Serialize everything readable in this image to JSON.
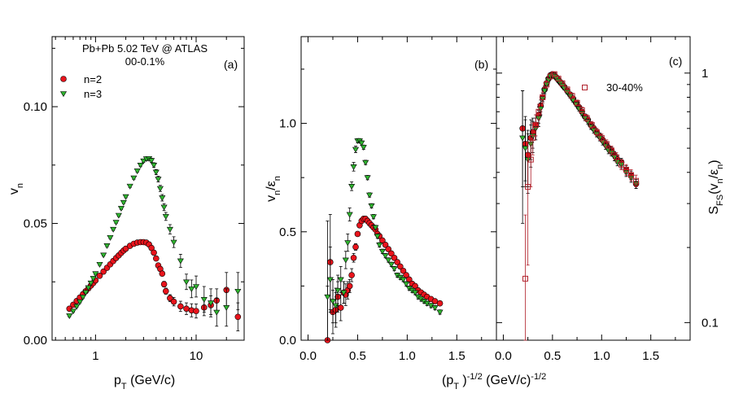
{
  "chart_data": [
    {
      "type": "scatter",
      "panel": "(a)",
      "title": "Pb+Pb 5.02 TeV @ ATLAS",
      "subtitle": "00-0.1%",
      "xlabel": "p",
      "xlabel_sub": "T",
      "xlabel_unit": " (GeV/c)",
      "ylabel": "v",
      "ylabel_sub": "n",
      "xscale": "log",
      "xlim": [
        0.37,
        30
      ],
      "ylim": [
        0,
        0.13
      ],
      "xticks": [
        1,
        10
      ],
      "xtick_labels": [
        "1",
        "10"
      ],
      "yticks": [
        0,
        0.05,
        0.1
      ],
      "ytick_labels": [
        "0.00",
        "0.05",
        "0.10"
      ],
      "legend_position": "top-left",
      "series": [
        {
          "name": "n=2",
          "color": "#e8141c",
          "marker": "circle",
          "x": [
            0.55,
            0.6,
            0.65,
            0.7,
            0.75,
            0.8,
            0.85,
            0.9,
            0.95,
            1.0,
            1.1,
            1.2,
            1.3,
            1.4,
            1.5,
            1.6,
            1.7,
            1.8,
            1.9,
            2.0,
            2.2,
            2.4,
            2.6,
            2.8,
            3.0,
            3.2,
            3.4,
            3.6,
            3.8,
            4.0,
            4.2,
            4.4,
            4.6,
            4.8,
            5.0,
            5.5,
            6.0,
            7.0,
            8.0,
            9.0,
            10.0,
            12.0,
            14.0,
            16.0,
            20.0,
            26.0
          ],
          "y": [
            0.0135,
            0.0152,
            0.0168,
            0.0183,
            0.0197,
            0.021,
            0.0222,
            0.0234,
            0.0245,
            0.0256,
            0.0276,
            0.0294,
            0.031,
            0.0325,
            0.0339,
            0.0352,
            0.0363,
            0.0374,
            0.0384,
            0.0392,
            0.0404,
            0.0413,
            0.0418,
            0.042,
            0.042,
            0.0418,
            0.041,
            0.0395,
            0.0375,
            0.035,
            0.032,
            0.0305,
            0.0285,
            0.024,
            0.021,
            0.018,
            0.0165,
            0.0145,
            0.0135,
            0.0128,
            0.0125,
            0.014,
            0.015,
            0.017,
            0.0215,
            0.01
          ],
          "yerr": [
            0.0005,
            0.0005,
            0.0005,
            0.0005,
            0.0005,
            0.0005,
            0.0005,
            0.0005,
            0.0005,
            0.0005,
            0.0005,
            0.0005,
            0.0005,
            0.0005,
            0.0005,
            0.0005,
            0.0005,
            0.0005,
            0.0005,
            0.0005,
            0.0005,
            0.0005,
            0.0005,
            0.0005,
            0.0005,
            0.0005,
            0.0006,
            0.0006,
            0.0007,
            0.0008,
            0.0009,
            0.001,
            0.001,
            0.0012,
            0.0013,
            0.0015,
            0.0018,
            0.0022,
            0.0025,
            0.0028,
            0.003,
            0.0035,
            0.004,
            0.005,
            0.0075,
            0.006
          ]
        },
        {
          "name": "n=3",
          "color": "#2fb52f",
          "marker": "triangle-down",
          "x": [
            0.55,
            0.6,
            0.65,
            0.7,
            0.75,
            0.8,
            0.85,
            0.9,
            0.95,
            1.0,
            1.1,
            1.2,
            1.3,
            1.4,
            1.5,
            1.6,
            1.7,
            1.8,
            1.9,
            2.0,
            2.2,
            2.4,
            2.6,
            2.8,
            3.0,
            3.2,
            3.4,
            3.6,
            3.8,
            4.0,
            4.2,
            4.4,
            4.6,
            4.8,
            5.0,
            5.5,
            6.0,
            7.0,
            8.0,
            9.0,
            10.0,
            12.0,
            14.0,
            16.0,
            20.0,
            26.0
          ],
          "y": [
            0.0105,
            0.0125,
            0.0145,
            0.0165,
            0.0185,
            0.0205,
            0.0225,
            0.0245,
            0.0265,
            0.0285,
            0.0325,
            0.0365,
            0.0405,
            0.044,
            0.0475,
            0.0505,
            0.0535,
            0.0565,
            0.059,
            0.0615,
            0.066,
            0.0695,
            0.0725,
            0.075,
            0.0768,
            0.0777,
            0.0778,
            0.077,
            0.075,
            0.072,
            0.069,
            0.065,
            0.061,
            0.057,
            0.053,
            0.0475,
            0.042,
            0.034,
            0.025,
            0.022,
            0.023,
            0.0175,
            0.016,
            0.012,
            0.014,
            0.021
          ],
          "yerr": [
            0.0005,
            0.0005,
            0.0005,
            0.0005,
            0.0005,
            0.0005,
            0.0005,
            0.0005,
            0.0005,
            0.0005,
            0.0005,
            0.0005,
            0.0005,
            0.0005,
            0.0005,
            0.0005,
            0.0005,
            0.0005,
            0.0005,
            0.0005,
            0.0006,
            0.0006,
            0.0006,
            0.0007,
            0.0007,
            0.0008,
            0.0008,
            0.0009,
            0.001,
            0.0011,
            0.0012,
            0.0013,
            0.0014,
            0.0015,
            0.0017,
            0.002,
            0.0023,
            0.0028,
            0.0033,
            0.0038,
            0.0045,
            0.0055,
            0.006,
            0.006,
            0.008,
            0.008
          ]
        }
      ]
    },
    {
      "type": "scatter",
      "panel": "(b)",
      "xlabel": "(p",
      "xlabel_sub": "T",
      "xlabel_mid": " )",
      "xlabel_sup": "-1/2",
      "xlabel_unit": " (GeV/c)",
      "xlabel_sup2": "-1/2",
      "ylabel": "v",
      "ylabel_sub": "n",
      "ylabel_mid": "/ε",
      "ylabel_sub2": "n",
      "xlim": [
        -0.07,
        1.9
      ],
      "ylim": [
        0,
        1.4
      ],
      "xticks": [
        0,
        0.5,
        1.0,
        1.5
      ],
      "xtick_labels": [
        "0.0",
        "0.5",
        "1.0",
        "1.5"
      ],
      "yticks": [
        0,
        0.5,
        1.0
      ],
      "ytick_labels": [
        "0.0",
        "0.5",
        "1.0"
      ],
      "series": [
        {
          "name": "n=2",
          "color": "#e8141c",
          "marker": "circle",
          "x": [
            0.196,
            0.224,
            0.25,
            0.28,
            0.3,
            0.33,
            0.36,
            0.38,
            0.4,
            0.42,
            0.44,
            0.46,
            0.48,
            0.5,
            0.52,
            0.54,
            0.56,
            0.58,
            0.6,
            0.62,
            0.64,
            0.66,
            0.68,
            0.7,
            0.72,
            0.75,
            0.78,
            0.81,
            0.84,
            0.87,
            0.9,
            0.93,
            0.96,
            0.99,
            1.02,
            1.05,
            1.08,
            1.11,
            1.14,
            1.17,
            1.2,
            1.24,
            1.28,
            1.33
          ],
          "y": [
            0.0,
            0.36,
            0.13,
            0.14,
            0.2,
            0.15,
            0.22,
            0.21,
            0.23,
            0.25,
            0.3,
            0.38,
            0.43,
            0.49,
            0.53,
            0.55,
            0.56,
            0.56,
            0.55,
            0.54,
            0.53,
            0.52,
            0.51,
            0.49,
            0.48,
            0.46,
            0.44,
            0.42,
            0.4,
            0.38,
            0.36,
            0.34,
            0.32,
            0.3,
            0.28,
            0.26,
            0.25,
            0.23,
            0.22,
            0.21,
            0.2,
            0.19,
            0.18,
            0.17
          ],
          "yerr": [
            0.25,
            0.22,
            0.1,
            0.08,
            0.07,
            0.06,
            0.05,
            0.05,
            0.04,
            0.03,
            0.03,
            0.02,
            0.015,
            0.01,
            0.01,
            0.01,
            0.01,
            0.01,
            0.01,
            0.01,
            0.01,
            0.01,
            0.01,
            0.01,
            0.01,
            0.01,
            0.01,
            0.01,
            0.01,
            0.01,
            0.01,
            0.01,
            0.01,
            0.01,
            0.01,
            0.01,
            0.01,
            0.01,
            0.01,
            0.01,
            0.01,
            0.01,
            0.01,
            0.01
          ]
        },
        {
          "name": "n=3",
          "color": "#2fb52f",
          "marker": "triangle-down",
          "x": [
            0.196,
            0.224,
            0.25,
            0.28,
            0.3,
            0.33,
            0.36,
            0.38,
            0.4,
            0.42,
            0.44,
            0.46,
            0.48,
            0.5,
            0.52,
            0.54,
            0.56,
            0.58,
            0.6,
            0.62,
            0.64,
            0.66,
            0.68,
            0.7,
            0.72,
            0.75,
            0.78,
            0.81,
            0.84,
            0.87,
            0.9,
            0.93,
            0.96,
            0.99,
            1.02,
            1.05,
            1.08,
            1.11,
            1.14,
            1.17,
            1.2,
            1.24,
            1.28,
            1.33
          ],
          "y": [
            0.2,
            0.28,
            0.18,
            0.16,
            0.23,
            0.28,
            0.22,
            0.37,
            0.45,
            0.58,
            0.71,
            0.8,
            0.88,
            0.92,
            0.92,
            0.91,
            0.89,
            0.82,
            0.75,
            0.67,
            0.62,
            0.57,
            0.52,
            0.48,
            0.44,
            0.41,
            0.39,
            0.37,
            0.35,
            0.33,
            0.3,
            0.29,
            0.28,
            0.26,
            0.24,
            0.23,
            0.22,
            0.2,
            0.19,
            0.18,
            0.17,
            0.16,
            0.15,
            0.13
          ],
          "yerr": [
            0.35,
            0.15,
            0.1,
            0.08,
            0.07,
            0.06,
            0.05,
            0.04,
            0.04,
            0.03,
            0.02,
            0.02,
            0.015,
            0.01,
            0.01,
            0.01,
            0.01,
            0.01,
            0.01,
            0.01,
            0.01,
            0.01,
            0.01,
            0.01,
            0.01,
            0.01,
            0.01,
            0.01,
            0.01,
            0.01,
            0.01,
            0.01,
            0.01,
            0.01,
            0.01,
            0.01,
            0.01,
            0.01,
            0.01,
            0.01,
            0.01,
            0.01,
            0.01,
            0.01
          ]
        }
      ]
    },
    {
      "type": "scatter",
      "panel": "(c)",
      "yscale": "log",
      "xlim": [
        -0.07,
        1.9
      ],
      "ylim": [
        0.085,
        1.4
      ],
      "xticks": [
        0,
        0.5,
        1.0,
        1.5
      ],
      "xtick_labels": [
        "0.0",
        "0.5",
        "1.0",
        "1.5"
      ],
      "yticks": [
        0.1,
        1
      ],
      "ytick_labels": [
        "0.1",
        "1"
      ],
      "ylabel_right": "S",
      "ylabel_right_sub": "FS",
      "ylabel_right_mid": "(v",
      "ylabel_right_sub2": "n",
      "ylabel_right_mid2": "/ε",
      "ylabel_right_sub3": "n",
      "ylabel_right_end": ")",
      "legend_label": "30-40%",
      "legend_color": "#b0202a",
      "series": [
        {
          "name": "n=2",
          "color": "#e8141c",
          "marker": "circle",
          "x": [
            0.196,
            0.224,
            0.25,
            0.28,
            0.3,
            0.33,
            0.36,
            0.38,
            0.4,
            0.42,
            0.44,
            0.46,
            0.48,
            0.5,
            0.52,
            0.54,
            0.56,
            0.58,
            0.6,
            0.62,
            0.65,
            0.68,
            0.71,
            0.74,
            0.77,
            0.8,
            0.83,
            0.86,
            0.89,
            0.92,
            0.95,
            0.98,
            1.01,
            1.04,
            1.07,
            1.1,
            1.13,
            1.16,
            1.2,
            1.25,
            1.3,
            1.35
          ],
          "y": [
            0.6,
            0.52,
            0.47,
            0.55,
            0.58,
            0.62,
            0.68,
            0.74,
            0.8,
            0.86,
            0.91,
            0.95,
            0.98,
            0.99,
            0.98,
            0.96,
            0.94,
            0.92,
            0.9,
            0.88,
            0.85,
            0.82,
            0.79,
            0.76,
            0.73,
            0.7,
            0.67,
            0.65,
            0.62,
            0.6,
            0.58,
            0.56,
            0.54,
            0.52,
            0.5,
            0.49,
            0.47,
            0.45,
            0.44,
            0.41,
            0.39,
            0.36
          ],
          "yerr": [
            0.25,
            0.15,
            0.12,
            0.1,
            0.08,
            0.06,
            0.05,
            0.04,
            0.03,
            0.03,
            0.02,
            0.02,
            0.015,
            0.015,
            0.015,
            0.015,
            0.015,
            0.015,
            0.015,
            0.015,
            0.015,
            0.015,
            0.015,
            0.015,
            0.015,
            0.015,
            0.015,
            0.015,
            0.015,
            0.015,
            0.015,
            0.015,
            0.015,
            0.015,
            0.015,
            0.015,
            0.015,
            0.015,
            0.015,
            0.015,
            0.015,
            0.015
          ]
        },
        {
          "name": "n=3",
          "color": "#2fb52f",
          "marker": "triangle-down",
          "x": [
            0.196,
            0.224,
            0.25,
            0.28,
            0.3,
            0.33,
            0.36,
            0.38,
            0.4,
            0.42,
            0.44,
            0.46,
            0.48,
            0.5,
            0.52,
            0.54,
            0.56,
            0.58,
            0.6,
            0.62,
            0.65,
            0.68,
            0.71,
            0.74,
            0.77,
            0.8,
            0.83,
            0.86,
            0.89,
            0.92,
            0.95,
            0.98,
            1.01,
            1.04,
            1.07,
            1.1,
            1.13,
            1.16,
            1.2,
            1.25,
            1.3,
            1.35
          ],
          "y": [
            0.55,
            0.5,
            0.45,
            0.52,
            0.56,
            0.6,
            0.66,
            0.72,
            0.79,
            0.85,
            0.9,
            0.94,
            0.97,
            0.98,
            0.97,
            0.95,
            0.93,
            0.91,
            0.89,
            0.87,
            0.84,
            0.81,
            0.78,
            0.75,
            0.72,
            0.69,
            0.66,
            0.64,
            0.61,
            0.59,
            0.57,
            0.55,
            0.53,
            0.51,
            0.49,
            0.48,
            0.46,
            0.44,
            0.43,
            0.4,
            0.38,
            0.36
          ],
          "yerr": [
            0.3,
            0.15,
            0.12,
            0.1,
            0.08,
            0.06,
            0.05,
            0.04,
            0.03,
            0.03,
            0.02,
            0.02,
            0.015,
            0.015,
            0.015,
            0.015,
            0.015,
            0.015,
            0.015,
            0.015,
            0.015,
            0.015,
            0.015,
            0.015,
            0.015,
            0.015,
            0.015,
            0.015,
            0.015,
            0.015,
            0.015,
            0.015,
            0.015,
            0.015,
            0.015,
            0.015,
            0.015,
            0.015,
            0.015,
            0.015,
            0.015,
            0.015
          ]
        },
        {
          "name": "30-40%",
          "color": "#b0202a",
          "marker": "open-square",
          "x": [
            0.224,
            0.25,
            0.28,
            0.3,
            0.33,
            0.36,
            0.4,
            0.44,
            0.48,
            0.52,
            0.56,
            0.6,
            0.65,
            0.7,
            0.75,
            0.8,
            0.85,
            0.9,
            0.95,
            1.0,
            1.05,
            1.1,
            1.15,
            1.2,
            1.25,
            1.3,
            1.35
          ],
          "y": [
            0.15,
            0.35,
            0.45,
            0.55,
            0.62,
            0.7,
            0.8,
            0.9,
            0.97,
            0.99,
            0.95,
            0.91,
            0.86,
            0.81,
            0.76,
            0.71,
            0.66,
            0.62,
            0.58,
            0.55,
            0.52,
            0.49,
            0.46,
            0.43,
            0.41,
            0.39,
            0.37
          ],
          "yerr": [
            0.12,
            0.18,
            0.1,
            0.08,
            0.06,
            0.05,
            0.04,
            0.03,
            0.02,
            0.02,
            0.02,
            0.02,
            0.02,
            0.02,
            0.02,
            0.02,
            0.02,
            0.02,
            0.02,
            0.02,
            0.02,
            0.02,
            0.02,
            0.02,
            0.02,
            0.02,
            0.02
          ]
        }
      ]
    }
  ]
}
